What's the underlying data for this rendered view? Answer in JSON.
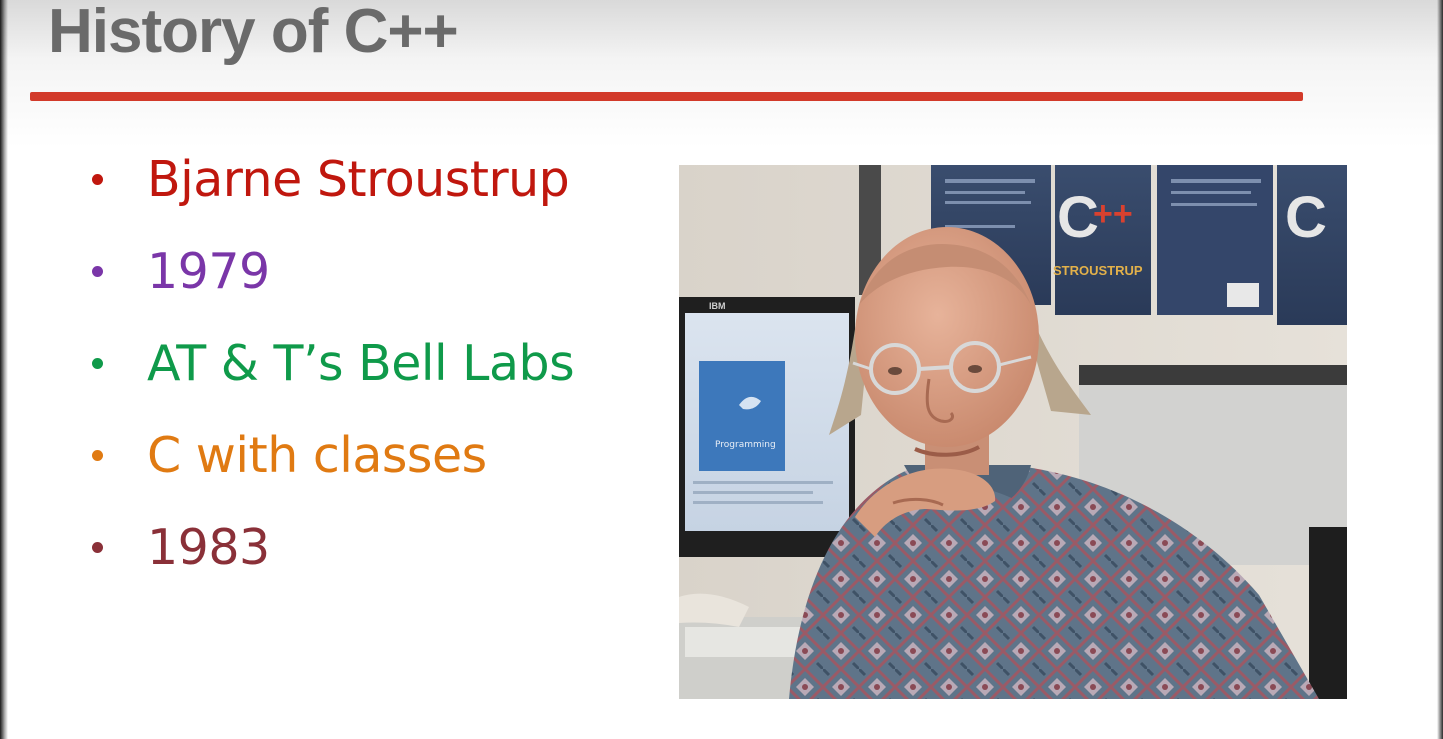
{
  "slide": {
    "title": "History of C++"
  },
  "colors": {
    "rule": "#d23a2a",
    "title": "#6a6a6a"
  },
  "bullets": [
    {
      "text": "Bjarne Stroustrup",
      "color": "#c0170e"
    },
    {
      "text": "1979",
      "color": "#7a36a8"
    },
    {
      "text": "AT & T’s Bell Labs",
      "color": "#0f9a4a"
    },
    {
      "text": "C with classes",
      "color": "#e07a12"
    },
    {
      "text": "1983",
      "color": "#8a3038"
    }
  ],
  "photo": {
    "poster_letter": "C",
    "poster_plus": "++",
    "poster_author": "STROUSTRUP",
    "monitor_brand": "IBM",
    "screen_book_label": "Programming"
  }
}
